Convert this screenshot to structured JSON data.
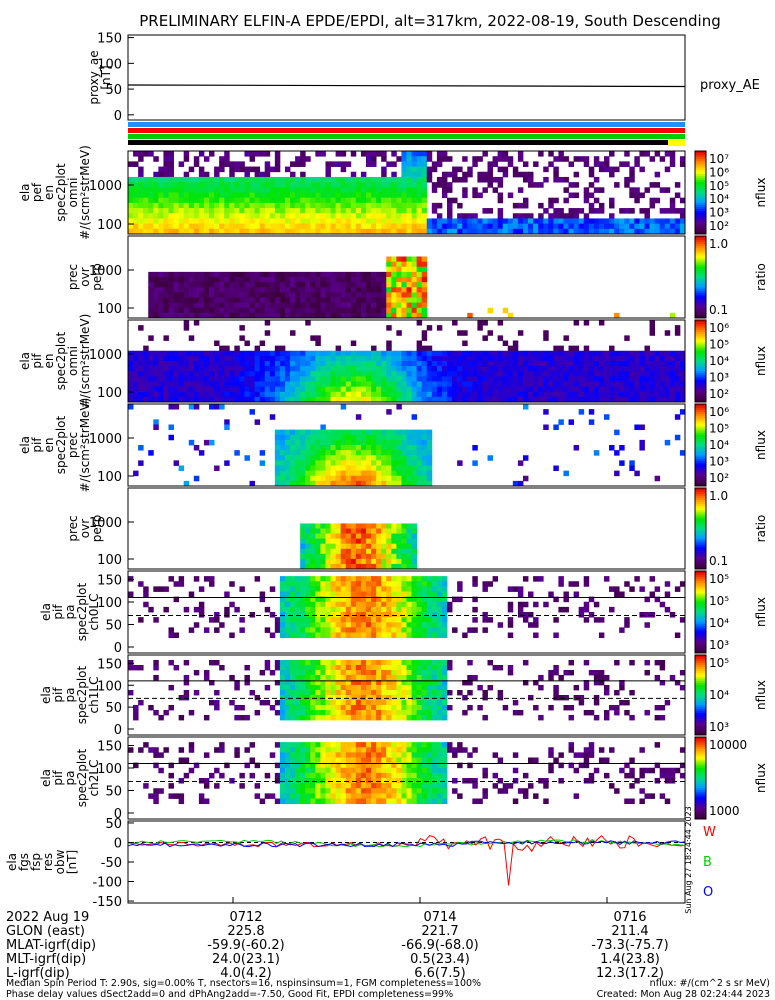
{
  "title": "PRELIMINARY ELFIN-A EPDE/EPDI, alt=317km, 2022-08-19, South Descending",
  "chart_data": [
    {
      "type": "line",
      "panel": "proxy_ae",
      "ylabel": [
        "proxy_ae",
        "[nT]"
      ],
      "yticks": [
        "150",
        "100",
        "50",
        "0"
      ],
      "ylim": [
        -10,
        155
      ],
      "legend": "proxy_AE",
      "x": [
        0,
        1
      ],
      "values": [
        58,
        55
      ]
    },
    {
      "type": "heatmap",
      "panel": "ela_pef_en_spec2plot_omni",
      "ylabel": [
        "ela",
        "pef",
        "en",
        "spec2plot",
        "omni",
        "#/(scm²strMeV)"
      ],
      "yticks": [
        "1000",
        "100"
      ],
      "colorbar": {
        "label": "nflux",
        "ticks": [
          "10⁷",
          "10⁶",
          "10⁵",
          "10⁴",
          "10³",
          "10²"
        ]
      }
    },
    {
      "type": "heatmap",
      "panel": "prec_ovr_perp_electron",
      "ylabel": [
        "prec",
        "ovr",
        "perp"
      ],
      "yticks": [
        "1000",
        "100"
      ],
      "colorbar": {
        "label": "ratio",
        "ticks": [
          "1.0",
          "0.1"
        ]
      }
    },
    {
      "type": "heatmap",
      "panel": "ela_pif_en_spec2plot_omni",
      "ylabel": [
        "ela",
        "pif",
        "en",
        "spec2plot",
        "omni",
        "#/(scm²strMeV)"
      ],
      "yticks": [
        "1000",
        "100"
      ],
      "colorbar": {
        "label": "nflux",
        "ticks": [
          "10⁶",
          "10⁵",
          "10⁴",
          "10³",
          "10²"
        ]
      }
    },
    {
      "type": "heatmap",
      "panel": "ela_pif_en_spec2plot_prec",
      "ylabel": [
        "ela",
        "pif",
        "en",
        "spec2plot",
        "prec",
        "#/(scm²strMeV)"
      ],
      "yticks": [
        "1000",
        "100"
      ],
      "colorbar": {
        "label": "nflux",
        "ticks": [
          "10⁶",
          "10⁵",
          "10⁴",
          "10³",
          "10²"
        ]
      }
    },
    {
      "type": "heatmap",
      "panel": "prec_ovr_perp_ion",
      "ylabel": [
        "prec",
        "ovr",
        "perp"
      ],
      "yticks": [
        "1000",
        "100"
      ],
      "colorbar": {
        "label": "ratio",
        "ticks": [
          "1.0",
          "0.1"
        ]
      }
    },
    {
      "type": "heatmap",
      "panel": "ela_pif_pa_spec2plot_ch0LC",
      "ylabel": [
        "ela",
        "pif",
        "pa",
        "spec2plot",
        "ch0LC"
      ],
      "yticks": [
        "150",
        "100",
        "50",
        "0"
      ],
      "colorbar": {
        "label": "nflux",
        "ticks": [
          "10⁵",
          "10⁵",
          "10⁴",
          "10³"
        ]
      }
    },
    {
      "type": "heatmap",
      "panel": "ela_pif_pa_spec2plot_ch1LC",
      "ylabel": [
        "ela",
        "pif",
        "pa",
        "spec2plot",
        "ch1LC"
      ],
      "yticks": [
        "150",
        "100",
        "50",
        "0"
      ],
      "colorbar": {
        "label": "nflux",
        "ticks": [
          "10⁵",
          "10⁴",
          "10³"
        ]
      }
    },
    {
      "type": "heatmap",
      "panel": "ela_pif_pa_spec2plot_ch2LC",
      "ylabel": [
        "ela",
        "pif",
        "pa",
        "spec2plot",
        "ch2LC"
      ],
      "yticks": [
        "150",
        "100",
        "50",
        "0"
      ],
      "colorbar": {
        "label": "nflux",
        "ticks": [
          "10000",
          "1000"
        ]
      }
    },
    {
      "type": "line",
      "panel": "ela_fgs_fsp_res_obw",
      "ylabel": [
        "ela",
        "fgs",
        "fsp",
        "res",
        "obw",
        "[nT]"
      ],
      "yticks": [
        "50",
        "0",
        "-50",
        "-100",
        "-150"
      ],
      "ylim": [
        -155,
        55
      ],
      "series": [
        {
          "name": "W",
          "color": "#ff0000"
        },
        {
          "name": "B",
          "color": "#00cc00"
        },
        {
          "name": "O",
          "color": "#0000ff"
        }
      ]
    }
  ],
  "xaxis": {
    "rows": [
      {
        "label": "2022 Aug 19",
        "values": [
          "0712",
          "0714",
          "0716"
        ]
      },
      {
        "label": "GLON (east)",
        "values": [
          "225.8",
          "221.7",
          "211.4"
        ]
      },
      {
        "label": "MLAT-igrf(dip)",
        "values": [
          "-59.9(-60.2)",
          "-66.9(-68.0)",
          "-73.3(-75.7)"
        ]
      },
      {
        "label": "MLT-igrf(dip)",
        "values": [
          "24.0(23.1)",
          "0.5(23.4)",
          "1.4(23.8)"
        ]
      },
      {
        "label": "L-igrf(dip)",
        "values": [
          "4.0(4.2)",
          "6.6(7.5)",
          "12.3(17.2)"
        ]
      }
    ]
  },
  "footer": {
    "line1": "Median Spin Period T: 2.90s, sig=0.00% T, nsectors=16, nspinsinsum=1, FGM completeness=100%",
    "line2": "Phase delay values dSect2add=0 and dPhAng2add=-7.50, Good Fit, EPDI completeness=99%",
    "units": "nflux: #/(cm^2 s sr MeV)",
    "created": "Created: Mon Aug 28 02:24:44 2023"
  },
  "side_stamp": "Sun Aug 27 18:24:44 2023",
  "colors": {
    "bar_blue": "#1e90ff",
    "bar_red": "#ff0000",
    "bar_green": "#00cc00",
    "bar_black": "#000000"
  }
}
